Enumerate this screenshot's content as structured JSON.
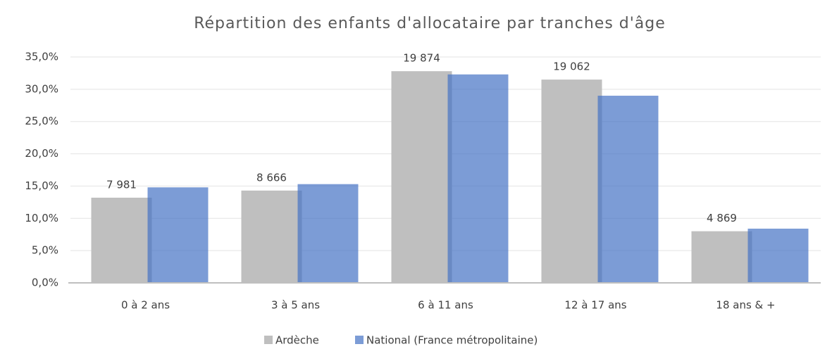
{
  "chart_data": {
    "type": "bar",
    "title": "Répartition des enfants d'allocataire par tranches d'âge",
    "categories": [
      "0 à 2 ans",
      "3 à 5 ans",
      "6 à 11 ans",
      "12 à 17 ans",
      "18 ans & +"
    ],
    "series": [
      {
        "name": "Ardèche",
        "color": "#bfbfbf",
        "values": [
          13.2,
          14.3,
          32.8,
          31.5,
          8.0
        ],
        "data_labels": [
          "7 981",
          "8 666",
          "19 874",
          "19 062",
          "4 869"
        ]
      },
      {
        "name": "National (France métropolitaine)",
        "color": "#4472c4",
        "values": [
          14.8,
          15.3,
          32.3,
          29.0,
          8.4
        ]
      }
    ],
    "ylim": [
      0,
      35
    ],
    "yticks": [
      {
        "value": 0,
        "label": "0,0%"
      },
      {
        "value": 5,
        "label": "5,0%"
      },
      {
        "value": 10,
        "label": "10,0%"
      },
      {
        "value": 15,
        "label": "15,0%"
      },
      {
        "value": 20,
        "label": "20,0%"
      },
      {
        "value": 25,
        "label": "25,0%"
      },
      {
        "value": 30,
        "label": "30,0%"
      },
      {
        "value": 35,
        "label": "35,0%"
      }
    ],
    "grid": true,
    "legend": "bottom"
  }
}
